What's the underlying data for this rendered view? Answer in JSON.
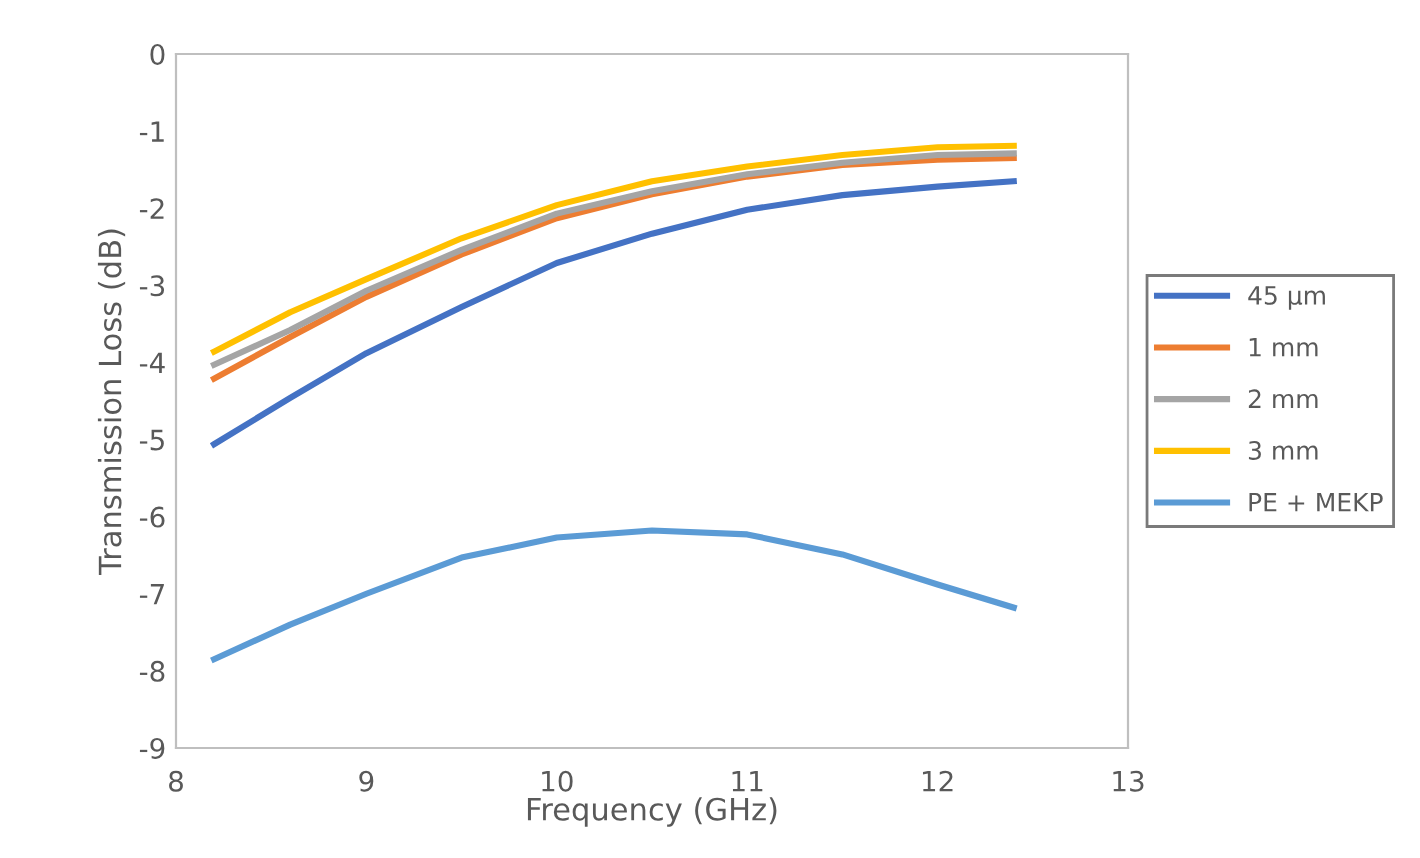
{
  "chart_data": {
    "type": "line",
    "xlabel": "Frequency (GHz)",
    "ylabel": "Transmission Loss (dB)",
    "xlim": [
      8,
      13
    ],
    "xticks": [
      8,
      9,
      10,
      11,
      12,
      13
    ],
    "ylim": [
      -9,
      0
    ],
    "yticks": [
      -9,
      -8,
      -7,
      -6,
      -5,
      -4,
      -3,
      -2,
      -1,
      0
    ],
    "x": [
      8.2,
      8.6,
      9,
      9.5,
      10,
      10.5,
      11,
      11.5,
      12,
      12.4
    ],
    "grid": false,
    "legend": "right",
    "marker": "none",
    "line_style": "solid",
    "series": [
      {
        "name": "45 µm",
        "color": "#4472c4",
        "values": [
          -5.06,
          -4.46,
          -3.88,
          -3.28,
          -2.71,
          -2.33,
          -2.02,
          -1.83,
          -1.72,
          -1.65
        ]
      },
      {
        "name": "1 mm",
        "color": "#ed7d31",
        "values": [
          -4.21,
          -3.67,
          -3.15,
          -2.6,
          -2.13,
          -1.82,
          -1.59,
          -1.44,
          -1.37,
          -1.35
        ]
      },
      {
        "name": "2 mm",
        "color": "#a5a5a5",
        "values": [
          -4.03,
          -3.58,
          -3.07,
          -2.54,
          -2.07,
          -1.78,
          -1.56,
          -1.41,
          -1.31,
          -1.29
        ]
      },
      {
        "name": "3 mm",
        "color": "#ffc000",
        "values": [
          -3.86,
          -3.35,
          -2.92,
          -2.39,
          -1.96,
          -1.65,
          -1.46,
          -1.31,
          -1.21,
          -1.19
        ]
      },
      {
        "name": "PE + MEKP",
        "color": "#5b9bd5",
        "values": [
          -7.85,
          -7.4,
          -7.0,
          -6.53,
          -6.27,
          -6.18,
          -6.23,
          -6.49,
          -6.88,
          -7.18
        ]
      }
    ]
  }
}
